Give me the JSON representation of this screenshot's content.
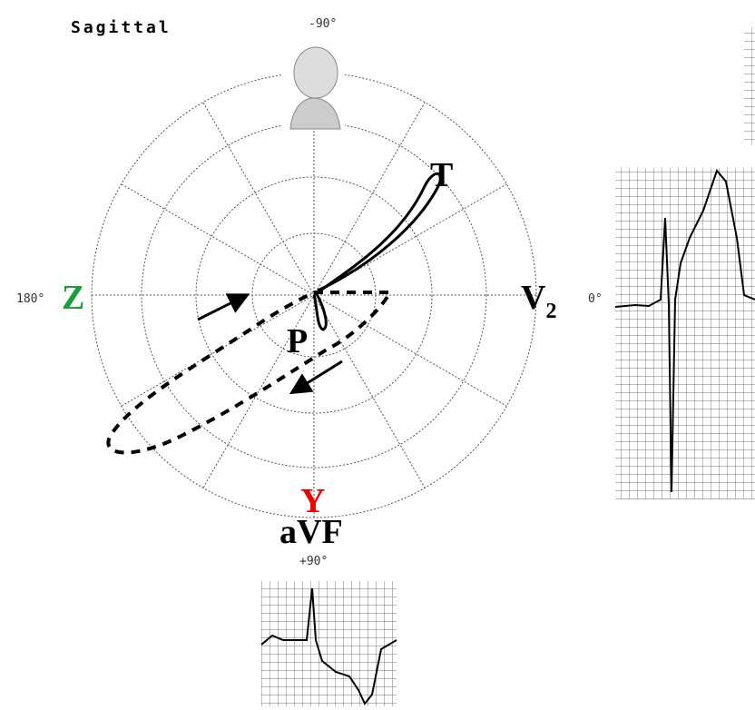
{
  "header": {
    "title": "Sagittal"
  },
  "axes": {
    "top": "-90°",
    "left": "180°",
    "right": "0°",
    "bottom": "+90°"
  },
  "leads": {
    "z": "Z",
    "v2": {
      "letter": "V",
      "subscript": "2"
    },
    "y": "Y",
    "avf": "aVF"
  },
  "loops": {
    "t": "T",
    "p": "P"
  }
}
